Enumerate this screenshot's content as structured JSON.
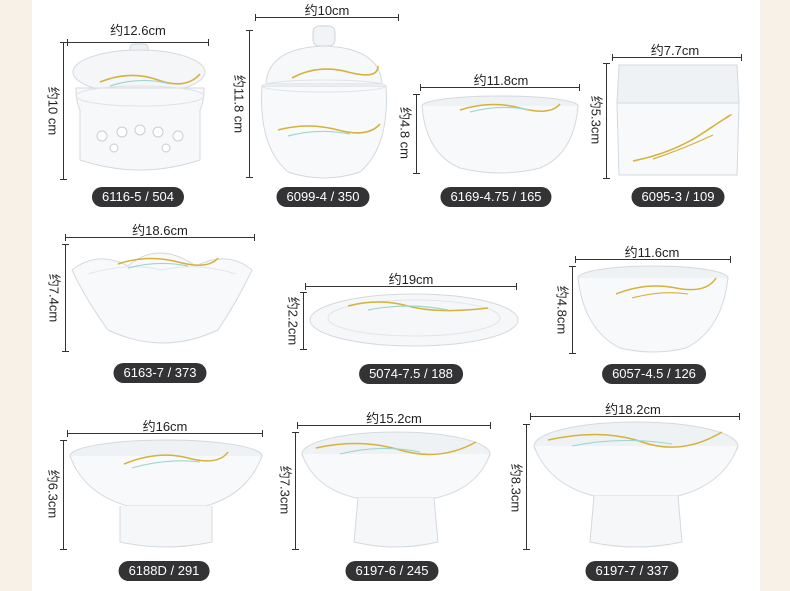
{
  "products": [
    {
      "width": "约12.6cm",
      "height": "约10 cm",
      "code": "6116-5 / 504"
    },
    {
      "width": "约10cm",
      "height": "约11.8 cm",
      "code": "6099-4 / 350"
    },
    {
      "width": "约11.8cm",
      "height": "约4.8 cm",
      "code": "6169-4.75 / 165"
    },
    {
      "width": "约7.7cm",
      "height": "约5.3cm",
      "code": "6095-3 / 109"
    },
    {
      "width": "约18.6cm",
      "height": "约7.4cm",
      "code": "6163-7 / 373"
    },
    {
      "width": "约19cm",
      "height": "约2.2cm",
      "code": "5074-7.5 / 188"
    },
    {
      "width": "约11.6cm",
      "height": "约4.8cm",
      "code": "6057-4.5 / 126"
    },
    {
      "width": "约16cm",
      "height": "约6.3cm",
      "code": "6188D / 291"
    },
    {
      "width": "约15.2cm",
      "height": "约7.3cm",
      "code": "6197-6 / 245"
    },
    {
      "width": "约18.2cm",
      "height": "约8.3cm",
      "code": "6197-7 / 337"
    }
  ]
}
